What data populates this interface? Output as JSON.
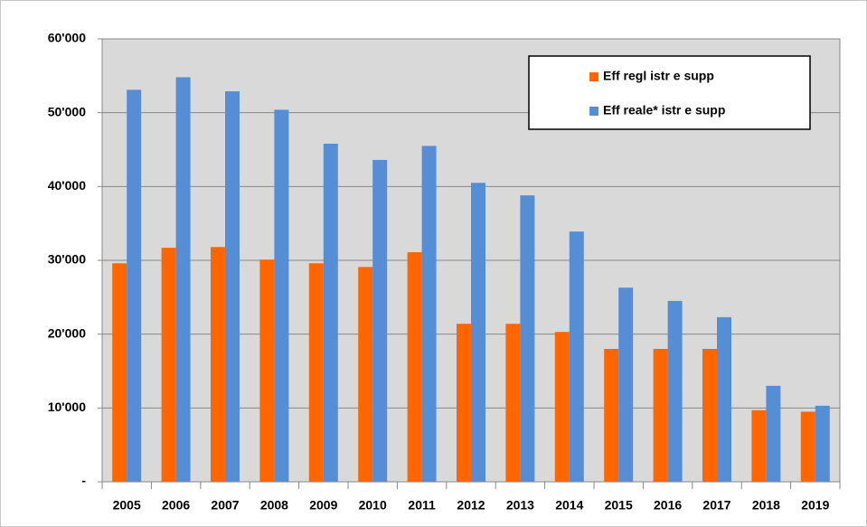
{
  "chart_data": {
    "type": "bar",
    "categories": [
      "2005",
      "2006",
      "2007",
      "2008",
      "2009",
      "2010",
      "2011",
      "2012",
      "2013",
      "2014",
      "2015",
      "2016",
      "2017",
      "2018",
      "2019"
    ],
    "series": [
      {
        "name": "Eff regl istr e supp",
        "color": "#ff6600",
        "values": [
          29600,
          31700,
          31800,
          30100,
          29600,
          29100,
          31100,
          21400,
          21400,
          20300,
          18000,
          18000,
          18000,
          9700,
          9500
        ]
      },
      {
        "name": "Eff reale* istr e supp",
        "color": "#558ed5",
        "values": [
          53100,
          54800,
          52900,
          50400,
          45800,
          43600,
          45500,
          40500,
          38800,
          33900,
          26300,
          24500,
          22300,
          13000,
          10300
        ]
      }
    ],
    "ylim": [
      0,
      60000
    ],
    "yticks": [
      {
        "value": 0,
        "label": "-"
      },
      {
        "value": 10000,
        "label": "10'000"
      },
      {
        "value": 20000,
        "label": "20'000"
      },
      {
        "value": 30000,
        "label": "30'000"
      },
      {
        "value": 40000,
        "label": "40'000"
      },
      {
        "value": 50000,
        "label": "50'000"
      },
      {
        "value": 60000,
        "label": "60'000"
      }
    ],
    "grid": true
  }
}
